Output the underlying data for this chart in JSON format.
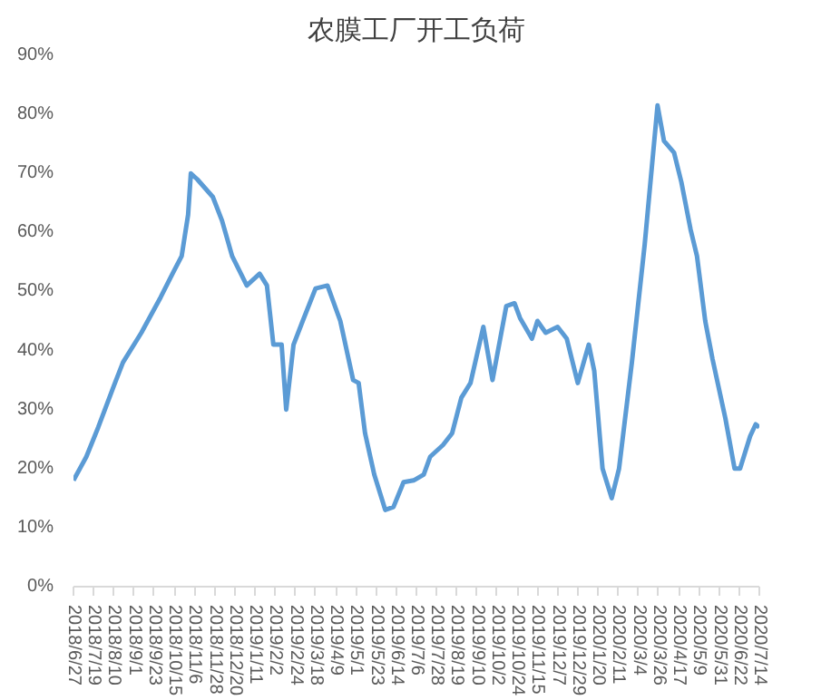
{
  "chart_data": {
    "type": "line",
    "title": "农膜工厂开工负荷",
    "x": [
      "2018-06-27",
      "2018-07-11",
      "2018-07-24",
      "2018-08-10",
      "2018-08-20",
      "2018-09-09",
      "2018-09-30",
      "2018-10-13",
      "2018-10-23",
      "2018-10-30",
      "2018-11-02",
      "2018-11-09",
      "2018-11-26",
      "2018-12-06",
      "2018-12-17",
      "2019-01-02",
      "2019-01-16",
      "2019-01-24",
      "2019-01-31",
      "2019-02-09",
      "2019-02-14",
      "2019-02-22",
      "2019-03-04",
      "2019-03-18",
      "2019-03-31",
      "2019-04-14",
      "2019-04-28",
      "2019-05-04",
      "2019-05-11",
      "2019-05-21",
      "2019-06-02",
      "2019-06-11",
      "2019-06-22",
      "2019-07-03",
      "2019-07-14",
      "2019-07-21",
      "2019-08-04",
      "2019-08-14",
      "2019-08-24",
      "2019-09-03",
      "2019-09-17",
      "2019-09-27",
      "2019-10-12",
      "2019-10-21",
      "2019-10-27",
      "2019-11-09",
      "2019-11-15",
      "2019-11-24",
      "2019-12-07",
      "2019-12-17",
      "2019-12-29",
      "2020-01-10",
      "2020-01-16",
      "2020-01-25",
      "2020-02-04",
      "2020-02-12",
      "2020-02-26",
      "2020-03-11",
      "2020-03-25",
      "2020-04-01",
      "2020-04-12",
      "2020-04-20",
      "2020-04-30",
      "2020-05-07",
      "2020-05-16",
      "2020-05-24",
      "2020-06-07",
      "2020-06-17",
      "2020-06-23",
      "2020-07-04",
      "2020-07-10",
      "2020-07-14"
    ],
    "series": [
      {
        "color": "#5b9bd5",
        "values": [
          18,
          22,
          27,
          34,
          38,
          43,
          49,
          53,
          56,
          63,
          70,
          69,
          66,
          62,
          56,
          51,
          53,
          51,
          41,
          41,
          30,
          41,
          45,
          50.5,
          51,
          45,
          35,
          34.5,
          26,
          19,
          13,
          13.5,
          17.7,
          18,
          19,
          22,
          24,
          26,
          32,
          34.5,
          44,
          35,
          47.5,
          48,
          45.5,
          42,
          45,
          43,
          44,
          42,
          34.5,
          41,
          36.5,
          20,
          15,
          20,
          38,
          58,
          81.5,
          75.5,
          73.5,
          68.5,
          60.5,
          56,
          45,
          38.5,
          28.5,
          20,
          20,
          25.5,
          27.5,
          27
        ]
      }
    ],
    "ylim": [
      0,
      90
    ],
    "yticks": [
      {
        "value": 0,
        "label": "0%"
      },
      {
        "value": 10,
        "label": "10%"
      },
      {
        "value": 20,
        "label": "20%"
      },
      {
        "value": 30,
        "label": "30%"
      },
      {
        "value": 40,
        "label": "40%"
      },
      {
        "value": 50,
        "label": "50%"
      },
      {
        "value": 60,
        "label": "60%"
      },
      {
        "value": 70,
        "label": "70%"
      },
      {
        "value": 80,
        "label": "80%"
      },
      {
        "value": 90,
        "label": "90%"
      }
    ],
    "xlim": [
      "2018-06-27",
      "2020-07-14"
    ],
    "xticks": [
      {
        "value": "2018-06-27",
        "label": "2018/6/27"
      },
      {
        "value": "2018-07-19",
        "label": "2018/7/19"
      },
      {
        "value": "2018-08-10",
        "label": "2018/8/10"
      },
      {
        "value": "2018-09-01",
        "label": "2018/9/1"
      },
      {
        "value": "2018-09-23",
        "label": "2018/9/23"
      },
      {
        "value": "2018-10-15",
        "label": "2018/10/15"
      },
      {
        "value": "2018-11-06",
        "label": "2018/11/6"
      },
      {
        "value": "2018-11-28",
        "label": "2018/11/28"
      },
      {
        "value": "2018-12-20",
        "label": "2018/12/20"
      },
      {
        "value": "2019-01-11",
        "label": "2019/1/11"
      },
      {
        "value": "2019-02-02",
        "label": "2019/2/2"
      },
      {
        "value": "2019-02-24",
        "label": "2019/2/24"
      },
      {
        "value": "2019-03-18",
        "label": "2019/3/18"
      },
      {
        "value": "2019-04-09",
        "label": "2019/4/9"
      },
      {
        "value": "2019-05-01",
        "label": "2019/5/1"
      },
      {
        "value": "2019-05-23",
        "label": "2019/5/23"
      },
      {
        "value": "2019-06-14",
        "label": "2019/6/14"
      },
      {
        "value": "2019-07-06",
        "label": "2019/7/6"
      },
      {
        "value": "2019-07-28",
        "label": "2019/7/28"
      },
      {
        "value": "2019-08-19",
        "label": "2019/8/19"
      },
      {
        "value": "2019-09-10",
        "label": "2019/9/10"
      },
      {
        "value": "2019-10-02",
        "label": "2019/10/2"
      },
      {
        "value": "2019-10-24",
        "label": "2019/10/24"
      },
      {
        "value": "2019-11-15",
        "label": "2019/11/15"
      },
      {
        "value": "2019-12-07",
        "label": "2019/12/7"
      },
      {
        "value": "2019-12-29",
        "label": "2019/12/29"
      },
      {
        "value": "2020-01-20",
        "label": "2020/1/20"
      },
      {
        "value": "2020-02-11",
        "label": "2020/2/11"
      },
      {
        "value": "2020-03-04",
        "label": "2020/3/4"
      },
      {
        "value": "2020-03-26",
        "label": "2020/3/26"
      },
      {
        "value": "2020-04-17",
        "label": "2020/4/17"
      },
      {
        "value": "2020-05-09",
        "label": "2020/5/9"
      },
      {
        "value": "2020-05-31",
        "label": "2020/5/31"
      },
      {
        "value": "2020-06-22",
        "label": "2020/6/22"
      },
      {
        "value": "2020-07-14",
        "label": "2020/7/14"
      }
    ],
    "marker": "none",
    "line_style": "solid"
  }
}
